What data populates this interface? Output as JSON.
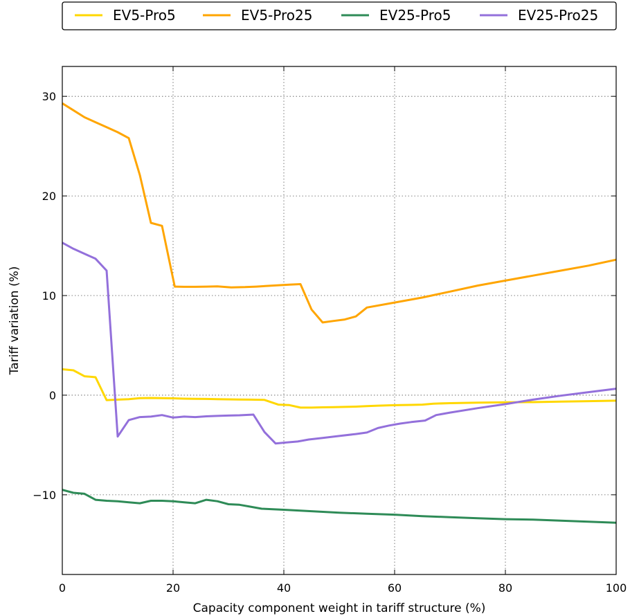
{
  "chart_data": {
    "type": "line",
    "title": "",
    "xlabel": "Capacity component weight in tariff structure (%)",
    "ylabel": "Tariff variation (%)",
    "xlim": [
      0,
      100
    ],
    "ylim": [
      -18,
      33
    ],
    "xticks": [
      0,
      20,
      40,
      60,
      80,
      100
    ],
    "yticks": [
      -10,
      0,
      10,
      20,
      30
    ],
    "ytick_labels": [
      "−10",
      "0",
      "10",
      "20",
      "30"
    ],
    "grid": true,
    "legend_position": "top-outside",
    "series": [
      {
        "name": "EV5-Pro5",
        "color": "#ffd700",
        "x": [
          0,
          2,
          4,
          6,
          8,
          10,
          12,
          14,
          16,
          18,
          20,
          22,
          24,
          26,
          28,
          30,
          32,
          34,
          36.5,
          39,
          41,
          43,
          45,
          47,
          49,
          51,
          53,
          55,
          57,
          59,
          61,
          63,
          65,
          67,
          70,
          75,
          80,
          85,
          90,
          95,
          100
        ],
        "values": [
          2.6,
          2.5,
          1.9,
          1.8,
          -0.5,
          -0.45,
          -0.4,
          -0.3,
          -0.28,
          -0.3,
          -0.32,
          -0.35,
          -0.37,
          -0.38,
          -0.4,
          -0.42,
          -0.44,
          -0.45,
          -0.48,
          -0.95,
          -1.0,
          -1.25,
          -1.25,
          -1.22,
          -1.2,
          -1.18,
          -1.15,
          -1.1,
          -1.05,
          -1.02,
          -1.0,
          -0.98,
          -0.95,
          -0.85,
          -0.8,
          -0.75,
          -0.72,
          -0.7,
          -0.65,
          -0.6,
          -0.55
        ]
      },
      {
        "name": "EV5-Pro25",
        "color": "#ffa500",
        "x": [
          0,
          2,
          4,
          6,
          8,
          10,
          12,
          14,
          16,
          18,
          20.3,
          22,
          24,
          26,
          28,
          30.5,
          33,
          35,
          38,
          41,
          43,
          45,
          47,
          49,
          51,
          53,
          55,
          60,
          65,
          70,
          75,
          80,
          85,
          90,
          95,
          100
        ],
        "values": [
          29.3,
          28.6,
          27.9,
          27.4,
          26.9,
          26.4,
          25.8,
          22.1,
          17.3,
          17.0,
          10.9,
          10.88,
          10.88,
          10.9,
          10.92,
          10.82,
          10.85,
          10.9,
          11.0,
          11.1,
          11.15,
          8.6,
          7.3,
          7.45,
          7.6,
          7.9,
          8.8,
          9.3,
          9.8,
          10.4,
          11.0,
          11.5,
          12.0,
          12.5,
          13.0,
          13.6
        ]
      },
      {
        "name": "EV25-Pro5",
        "color": "#2e8b57",
        "x": [
          0,
          2,
          4,
          6,
          8,
          10,
          12,
          14,
          16,
          18,
          20,
          22,
          24,
          26,
          28,
          30,
          32,
          34,
          36,
          38,
          40,
          45,
          50,
          55,
          60,
          65,
          70,
          75,
          80,
          85,
          90,
          95,
          100
        ],
        "values": [
          -9.5,
          -9.8,
          -9.9,
          -10.5,
          -10.6,
          -10.65,
          -10.75,
          -10.85,
          -10.6,
          -10.6,
          -10.65,
          -10.75,
          -10.85,
          -10.5,
          -10.65,
          -10.95,
          -11.0,
          -11.2,
          -11.4,
          -11.45,
          -11.5,
          -11.65,
          -11.8,
          -11.9,
          -12.0,
          -12.15,
          -12.25,
          -12.35,
          -12.45,
          -12.5,
          -12.6,
          -12.7,
          -12.8
        ]
      },
      {
        "name": "EV25-Pro25",
        "color": "#9370db",
        "x": [
          0,
          2,
          4,
          6,
          8,
          10,
          12,
          14,
          16,
          18,
          20,
          22,
          24,
          26,
          28,
          30,
          32,
          34.5,
          36.5,
          38.5,
          40.5,
          42.5,
          44.5,
          47,
          50,
          53,
          55,
          57,
          59,
          61,
          63,
          65.5,
          67.5,
          70,
          75,
          80,
          85,
          90,
          95,
          100
        ],
        "values": [
          15.3,
          14.7,
          14.2,
          13.7,
          12.5,
          -4.15,
          -2.5,
          -2.2,
          -2.15,
          -2.0,
          -2.25,
          -2.15,
          -2.2,
          -2.12,
          -2.08,
          -2.05,
          -2.02,
          -1.95,
          -3.7,
          -4.85,
          -4.75,
          -4.65,
          -4.45,
          -4.3,
          -4.1,
          -3.9,
          -3.75,
          -3.3,
          -3.05,
          -2.85,
          -2.7,
          -2.55,
          -2.0,
          -1.75,
          -1.3,
          -0.9,
          -0.45,
          -0.05,
          0.3,
          0.65
        ]
      }
    ]
  }
}
